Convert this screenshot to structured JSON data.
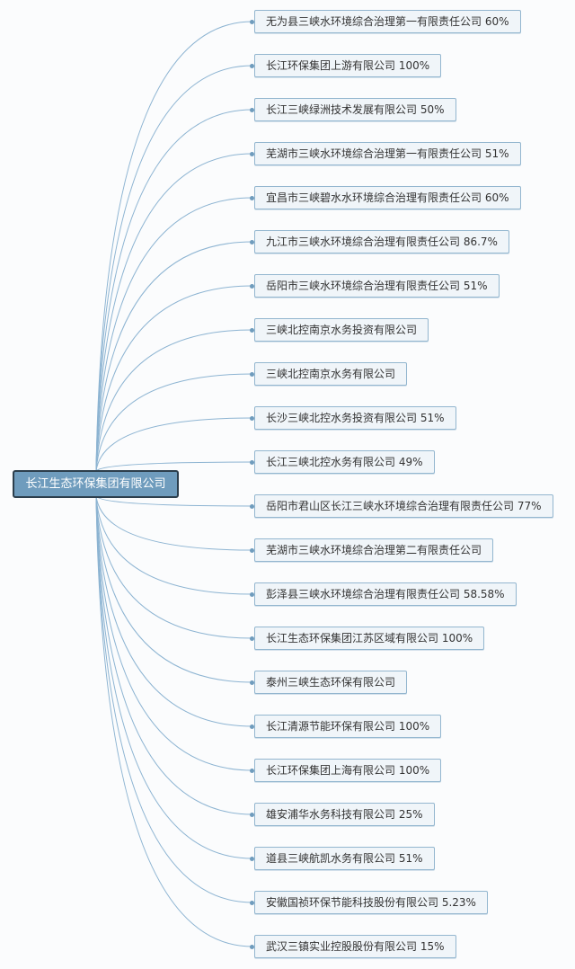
{
  "root": {
    "label": "长江生态环保集团有限公司"
  },
  "colors": {
    "link": "#8db4d2",
    "root_fill": "#6f9cbd",
    "root_border": "#2c3e4c",
    "node_fill": "#f0f5f9",
    "node_border": "#93b6cf"
  },
  "children": [
    {
      "label": "无为县三峡水环境综合治理第一有限责任公司 60%"
    },
    {
      "label": "长江环保集团上游有限公司 100%"
    },
    {
      "label": "长江三峡绿洲技术发展有限公司 50%"
    },
    {
      "label": "芜湖市三峡水环境综合治理第一有限责任公司 51%"
    },
    {
      "label": "宜昌市三峡碧水水环境综合治理有限责任公司 60%"
    },
    {
      "label": "九江市三峡水环境综合治理有限责任公司 86.7%"
    },
    {
      "label": "岳阳市三峡水环境综合治理有限责任公司 51%"
    },
    {
      "label": "三峡北控南京水务投资有限公司"
    },
    {
      "label": "三峡北控南京水务有限公司"
    },
    {
      "label": "长沙三峡北控水务投资有限公司 51%"
    },
    {
      "label": "长江三峡北控水务有限公司 49%"
    },
    {
      "label": "岳阳市君山区长江三峡水环境综合治理有限责任公司 77%"
    },
    {
      "label": "芜湖市三峡水环境综合治理第二有限责任公司"
    },
    {
      "label": "彭泽县三峡水环境综合治理有限责任公司 58.58%"
    },
    {
      "label": "长江生态环保集团江苏区域有限公司 100%"
    },
    {
      "label": "泰州三峡生态环保有限公司"
    },
    {
      "label": "长江清源节能环保有限公司 100%"
    },
    {
      "label": "长江环保集团上海有限公司 100%"
    },
    {
      "label": "雄安浦华水务科技有限公司 25%"
    },
    {
      "label": "道县三峡航凯水务有限公司 51%"
    },
    {
      "label": "安徽国祯环保节能科技股份有限公司 5.23%"
    },
    {
      "label": "武汉三镇实业控股股份有限公司 15%"
    }
  ]
}
